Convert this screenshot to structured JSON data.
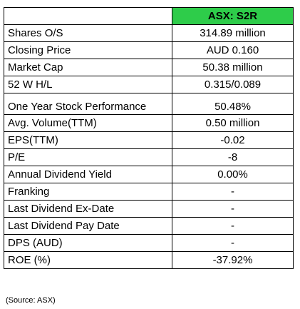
{
  "header": {
    "ticker": "ASX: S2R"
  },
  "rows": [
    {
      "label": "Shares O/S",
      "value": "314.89 million"
    },
    {
      "label": "Closing Price",
      "value": "AUD 0.160"
    },
    {
      "label": "Market Cap",
      "value": "50.38 million"
    },
    {
      "label": "52 W H/L",
      "value": "0.315/0.089"
    },
    {
      "label": "One Year Stock Performance",
      "value": "50.48%"
    },
    {
      "label": "Avg. Volume(TTM)",
      "value": "0.50 million"
    },
    {
      "label": "EPS(TTM)",
      "value": "-0.02"
    },
    {
      "label": "P/E",
      "value": "-8"
    },
    {
      "label": "Annual Dividend Yield",
      "value": "0.00%"
    },
    {
      "label": "Franking",
      "value": "-"
    },
    {
      "label": "Last Dividend Ex-Date",
      "value": "-"
    },
    {
      "label": "Last Dividend Pay Date",
      "value": "-"
    },
    {
      "label": "DPS (AUD)",
      "value": "-"
    },
    {
      "label": "ROE (%)",
      "value": "-37.92%"
    }
  ],
  "source": "(Source: ASX)",
  "colors": {
    "header_fill": "#2ecc4a",
    "border": "#000000"
  }
}
